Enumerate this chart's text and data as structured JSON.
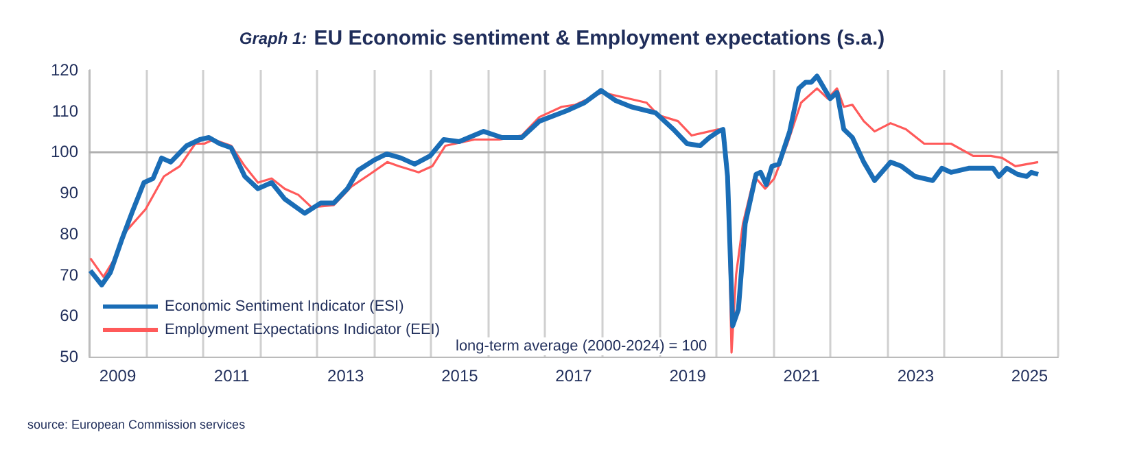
{
  "chart_data": {
    "type": "line",
    "title": "Graph 1: EU Economic sentiment & Employment expectations (s.a.)",
    "xlim": [
      2009,
      2026
    ],
    "xticks": [
      {
        "value": 2009,
        "label": null
      },
      {
        "value": 2009.5,
        "label": "2009"
      },
      {
        "value": 2010,
        "label": null
      },
      {
        "value": 2011,
        "label": null
      },
      {
        "value": 2011.5,
        "label": "2011"
      },
      {
        "value": 2012,
        "label": null
      },
      {
        "value": 2013,
        "label": null
      },
      {
        "value": 2013.5,
        "label": "2013"
      },
      {
        "value": 2014,
        "label": null
      },
      {
        "value": 2015,
        "label": null
      },
      {
        "value": 2015.5,
        "label": "2015"
      },
      {
        "value": 2016,
        "label": null
      },
      {
        "value": 2017,
        "label": null
      },
      {
        "value": 2017.5,
        "label": "2017"
      },
      {
        "value": 2018,
        "label": null
      },
      {
        "value": 2019,
        "label": null
      },
      {
        "value": 2019.5,
        "label": "2019"
      },
      {
        "value": 2020,
        "label": null
      },
      {
        "value": 2021,
        "label": null
      },
      {
        "value": 2021.5,
        "label": "2021"
      },
      {
        "value": 2022,
        "label": null
      },
      {
        "value": 2023,
        "label": null
      },
      {
        "value": 2023.5,
        "label": "2023"
      },
      {
        "value": 2024,
        "label": null
      },
      {
        "value": 2025,
        "label": null
      },
      {
        "value": 2025.5,
        "label": "2025"
      },
      {
        "value": 2026,
        "label": null
      }
    ],
    "ylim": [
      50,
      120
    ],
    "yticks": [
      50,
      60,
      70,
      80,
      90,
      100,
      110,
      120
    ],
    "grid": "x",
    "legend": "bottom left",
    "ref_lines": [
      {
        "axis": "y",
        "value": 100,
        "color": "#b0b0b0"
      }
    ],
    "annotations": [
      "long-term average (2000-2024) = 100",
      "source: European Commission services"
    ],
    "series": [
      {
        "name": "Economic Sentiment Indicator (ESI)",
        "color": "#1a6db6",
        "x": [
          2009.02,
          2009.22,
          2009.37,
          2009.57,
          2009.76,
          2009.96,
          2010.12,
          2010.27,
          2010.43,
          2010.71,
          2010.94,
          2011.1,
          2011.29,
          2011.49,
          2011.73,
          2011.96,
          2012.2,
          2012.43,
          2012.78,
          2013.06,
          2013.29,
          2013.53,
          2013.72,
          2014.0,
          2014.22,
          2014.47,
          2014.71,
          2014.98,
          2015.22,
          2015.49,
          2015.92,
          2016.24,
          2016.59,
          2016.9,
          2017.37,
          2017.69,
          2017.98,
          2018.24,
          2018.51,
          2018.94,
          2019.25,
          2019.49,
          2019.72,
          2019.88,
          2020.04,
          2020.12,
          2020.2,
          2020.29,
          2020.39,
          2020.51,
          2020.7,
          2020.78,
          2020.88,
          2020.98,
          2021.1,
          2021.29,
          2021.45,
          2021.57,
          2021.67,
          2021.77,
          2022.0,
          2022.12,
          2022.24,
          2022.39,
          2022.59,
          2022.78,
          2023.06,
          2023.25,
          2023.49,
          2023.8,
          2023.96,
          2024.12,
          2024.43,
          2024.86,
          2024.96,
          2025.1,
          2025.29,
          2025.45,
          2025.53,
          2025.65
        ],
        "values": [
          71,
          67.5,
          70.5,
          78.5,
          85.5,
          92.5,
          93.5,
          98.5,
          97.5,
          101.5,
          103,
          103.5,
          102,
          101,
          94,
          91,
          92.5,
          88.5,
          85,
          87.5,
          87.5,
          91,
          95.5,
          98,
          99.5,
          98.5,
          97,
          99,
          103,
          102.5,
          105,
          103.5,
          103.5,
          107.5,
          110,
          112,
          115,
          112.5,
          111,
          109.5,
          105.5,
          102,
          101.5,
          103.5,
          105,
          105.5,
          94,
          57.5,
          61.5,
          82.5,
          94.5,
          95,
          92,
          96.5,
          97,
          105,
          115.5,
          117,
          117,
          118.5,
          113,
          114.5,
          105.5,
          103.5,
          97.5,
          93,
          97.5,
          96.5,
          94,
          93,
          96,
          95,
          96,
          96,
          94,
          96,
          94.5,
          94,
          95,
          94.5
        ]
      },
      {
        "name": "Employment Expectations Indicator (EEI)",
        "color": "#ff5a5a",
        "x": [
          2009.02,
          2009.25,
          2009.45,
          2009.64,
          2009.99,
          2010.31,
          2010.59,
          2010.86,
          2011.02,
          2011.18,
          2011.49,
          2011.73,
          2011.96,
          2012.2,
          2012.43,
          2012.67,
          2012.9,
          2013.29,
          2013.6,
          2013.92,
          2014.23,
          2014.43,
          2014.55,
          2014.78,
          2015.02,
          2015.25,
          2015.76,
          2016.2,
          2016.59,
          2016.9,
          2017.29,
          2017.53,
          2018.0,
          2018.31,
          2018.78,
          2018.98,
          2019.33,
          2019.57,
          2020.04,
          2020.12,
          2020.2,
          2020.27,
          2020.35,
          2020.47,
          2020.67,
          2020.86,
          2021.02,
          2021.25,
          2021.49,
          2021.77,
          2021.96,
          2022.12,
          2022.24,
          2022.39,
          2022.59,
          2022.78,
          2023.06,
          2023.33,
          2023.65,
          2024.12,
          2024.51,
          2024.82,
          2025.02,
          2025.25,
          2025.65
        ],
        "values": [
          74,
          69.5,
          74,
          80.5,
          86,
          94,
          96.5,
          102,
          102,
          103,
          101.5,
          96.5,
          92.5,
          93.5,
          91,
          89.5,
          86.5,
          87,
          91.5,
          94.5,
          97.5,
          96.5,
          96,
          95,
          96.5,
          101.5,
          103,
          103,
          104,
          108.5,
          111,
          111.5,
          114.5,
          113.5,
          112,
          109,
          107.5,
          104,
          105.5,
          105,
          95,
          51,
          70,
          82.5,
          94,
          91,
          93.5,
          102,
          112,
          115.5,
          113,
          115.5,
          111,
          111.5,
          107.5,
          105,
          107,
          105.5,
          102,
          102,
          99,
          99,
          98.5,
          96.5,
          97.5
        ]
      }
    ]
  }
}
